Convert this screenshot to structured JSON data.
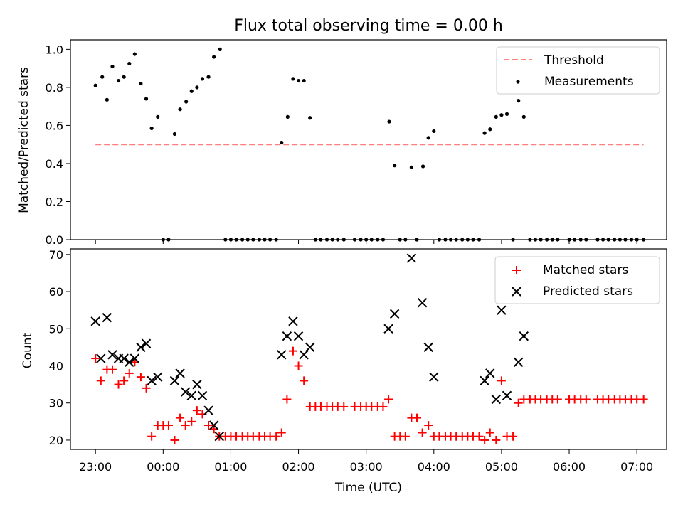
{
  "chart_data": [
    {
      "type": "scatter",
      "title": "Flux total observing time = 0.00 h",
      "xlabel": "",
      "ylabel": "Matched/Predicted stars",
      "ylim": [
        0,
        1.05
      ],
      "yticks": [
        "0.0",
        "0.2",
        "0.4",
        "0.6",
        "0.8",
        "1.0"
      ],
      "legend_position": "top-right",
      "grid": false,
      "threshold": {
        "name": "Threshold",
        "value": 0.5,
        "x_start": 0.0,
        "x_end": 8.1,
        "color": "#ff7f7f",
        "style": "dashed"
      },
      "series": [
        {
          "name": "Measurements",
          "marker": "dot",
          "color": "#000000",
          "points": [
            [
              0.0,
              0.81
            ],
            [
              0.1,
              0.855
            ],
            [
              0.17,
              0.735
            ],
            [
              0.25,
              0.91
            ],
            [
              0.34,
              0.835
            ],
            [
              0.42,
              0.855
            ],
            [
              0.5,
              0.925
            ],
            [
              0.58,
              0.975
            ],
            [
              0.67,
              0.82
            ],
            [
              0.75,
              0.74
            ],
            [
              0.83,
              0.585
            ],
            [
              0.92,
              0.645
            ],
            [
              1.0,
              0.0
            ],
            [
              1.08,
              0.0
            ],
            [
              1.17,
              0.555
            ],
            [
              1.25,
              0.685
            ],
            [
              1.34,
              0.725
            ],
            [
              1.42,
              0.78
            ],
            [
              1.5,
              0.8
            ],
            [
              1.58,
              0.845
            ],
            [
              1.67,
              0.855
            ],
            [
              1.75,
              0.96
            ],
            [
              1.84,
              1.0
            ],
            [
              1.92,
              0.0
            ],
            [
              2.0,
              0.0
            ],
            [
              2.08,
              0.0
            ],
            [
              2.17,
              0.0
            ],
            [
              2.25,
              0.0
            ],
            [
              2.33,
              0.0
            ],
            [
              2.42,
              0.0
            ],
            [
              2.5,
              0.0
            ],
            [
              2.58,
              0.0
            ],
            [
              2.67,
              0.0
            ],
            [
              2.75,
              0.51
            ],
            [
              2.84,
              0.645
            ],
            [
              2.92,
              0.845
            ],
            [
              3.0,
              0.835
            ],
            [
              3.08,
              0.835
            ],
            [
              3.17,
              0.64
            ],
            [
              3.25,
              0.0
            ],
            [
              3.33,
              0.0
            ],
            [
              3.42,
              0.0
            ],
            [
              3.5,
              0.0
            ],
            [
              3.58,
              0.0
            ],
            [
              3.67,
              0.0
            ],
            [
              3.83,
              0.0
            ],
            [
              3.92,
              0.0
            ],
            [
              4.0,
              0.0
            ],
            [
              4.08,
              0.0
            ],
            [
              4.17,
              0.0
            ],
            [
              4.25,
              0.0
            ],
            [
              4.34,
              0.62
            ],
            [
              4.42,
              0.39
            ],
            [
              4.5,
              0.0
            ],
            [
              4.58,
              0.0
            ],
            [
              4.67,
              0.38
            ],
            [
              4.75,
              0.0
            ],
            [
              4.84,
              0.385
            ],
            [
              4.92,
              0.535
            ],
            [
              5.0,
              0.57
            ],
            [
              5.08,
              0.0
            ],
            [
              5.17,
              0.0
            ],
            [
              5.25,
              0.0
            ],
            [
              5.33,
              0.0
            ],
            [
              5.42,
              0.0
            ],
            [
              5.5,
              0.0
            ],
            [
              5.58,
              0.0
            ],
            [
              5.67,
              0.0
            ],
            [
              5.75,
              0.56
            ],
            [
              5.83,
              0.58
            ],
            [
              5.92,
              0.645
            ],
            [
              6.0,
              0.655
            ],
            [
              6.08,
              0.66
            ],
            [
              6.17,
              0.0
            ],
            [
              6.25,
              0.73
            ],
            [
              6.33,
              0.645
            ],
            [
              6.42,
              0.0
            ],
            [
              6.5,
              0.0
            ],
            [
              6.58,
              0.0
            ],
            [
              6.67,
              0.0
            ],
            [
              6.75,
              0.0
            ],
            [
              6.83,
              0.0
            ],
            [
              7.0,
              0.0
            ],
            [
              7.08,
              0.0
            ],
            [
              7.17,
              0.0
            ],
            [
              7.25,
              0.0
            ],
            [
              7.42,
              0.0
            ],
            [
              7.5,
              0.0
            ],
            [
              7.58,
              0.0
            ],
            [
              7.67,
              0.0
            ],
            [
              7.75,
              0.0
            ],
            [
              7.83,
              0.0
            ],
            [
              7.92,
              0.0
            ],
            [
              8.0,
              0.0
            ],
            [
              8.1,
              0.0
            ]
          ]
        }
      ]
    },
    {
      "type": "scatter",
      "title": "",
      "xlabel": "Time (UTC)",
      "ylabel": "Count",
      "ylim": [
        17.5,
        71.5
      ],
      "yticks": [
        "20",
        "30",
        "40",
        "50",
        "60",
        "70"
      ],
      "xlim": [
        -0.37,
        8.44
      ],
      "xticks": [
        "23:00",
        "00:00",
        "01:00",
        "02:00",
        "03:00",
        "04:00",
        "05:00",
        "06:00",
        "07:00"
      ],
      "legend_position": "top-right",
      "grid": false,
      "series": [
        {
          "name": "Matched stars",
          "marker": "plus",
          "color": "#ff0000",
          "points": [
            [
              0.0,
              42
            ],
            [
              0.08,
              36
            ],
            [
              0.17,
              39
            ],
            [
              0.25,
              39
            ],
            [
              0.34,
              35
            ],
            [
              0.42,
              36
            ],
            [
              0.5,
              38
            ],
            [
              0.58,
              41
            ],
            [
              0.67,
              37
            ],
            [
              0.75,
              34
            ],
            [
              0.83,
              21
            ],
            [
              0.92,
              24
            ],
            [
              1.0,
              24
            ],
            [
              1.08,
              24
            ],
            [
              1.17,
              20
            ],
            [
              1.25,
              26
            ],
            [
              1.33,
              24
            ],
            [
              1.42,
              25
            ],
            [
              1.5,
              28
            ],
            [
              1.58,
              27
            ],
            [
              1.67,
              24
            ],
            [
              1.75,
              23
            ],
            [
              1.83,
              21
            ],
            [
              1.92,
              21
            ],
            [
              2.0,
              21
            ],
            [
              2.08,
              21
            ],
            [
              2.17,
              21
            ],
            [
              2.25,
              21
            ],
            [
              2.33,
              21
            ],
            [
              2.42,
              21
            ],
            [
              2.5,
              21
            ],
            [
              2.58,
              21
            ],
            [
              2.67,
              21
            ],
            [
              2.75,
              22
            ],
            [
              2.83,
              31
            ],
            [
              2.92,
              44
            ],
            [
              3.0,
              40
            ],
            [
              3.08,
              36
            ],
            [
              3.17,
              29
            ],
            [
              3.25,
              29
            ],
            [
              3.33,
              29
            ],
            [
              3.42,
              29
            ],
            [
              3.5,
              29
            ],
            [
              3.58,
              29
            ],
            [
              3.67,
              29
            ],
            [
              3.83,
              29
            ],
            [
              3.92,
              29
            ],
            [
              4.0,
              29
            ],
            [
              4.08,
              29
            ],
            [
              4.17,
              29
            ],
            [
              4.25,
              29
            ],
            [
              4.33,
              31
            ],
            [
              4.42,
              21
            ],
            [
              4.5,
              21
            ],
            [
              4.58,
              21
            ],
            [
              4.67,
              26
            ],
            [
              4.75,
              26
            ],
            [
              4.83,
              22
            ],
            [
              4.92,
              24
            ],
            [
              5.0,
              21
            ],
            [
              5.08,
              21
            ],
            [
              5.17,
              21
            ],
            [
              5.25,
              21
            ],
            [
              5.33,
              21
            ],
            [
              5.42,
              21
            ],
            [
              5.5,
              21
            ],
            [
              5.58,
              21
            ],
            [
              5.67,
              21
            ],
            [
              5.75,
              20
            ],
            [
              5.83,
              22
            ],
            [
              5.92,
              20
            ],
            [
              6.0,
              36
            ],
            [
              6.08,
              21
            ],
            [
              6.17,
              21
            ],
            [
              6.25,
              30
            ],
            [
              6.33,
              31
            ],
            [
              6.42,
              31
            ],
            [
              6.5,
              31
            ],
            [
              6.58,
              31
            ],
            [
              6.67,
              31
            ],
            [
              6.75,
              31
            ],
            [
              6.83,
              31
            ],
            [
              7.0,
              31
            ],
            [
              7.08,
              31
            ],
            [
              7.17,
              31
            ],
            [
              7.25,
              31
            ],
            [
              7.42,
              31
            ],
            [
              7.5,
              31
            ],
            [
              7.58,
              31
            ],
            [
              7.67,
              31
            ],
            [
              7.75,
              31
            ],
            [
              7.83,
              31
            ],
            [
              7.92,
              31
            ],
            [
              8.0,
              31
            ],
            [
              8.1,
              31
            ]
          ]
        },
        {
          "name": "Predicted stars",
          "marker": "x",
          "color": "#000000",
          "points": [
            [
              0.0,
              52
            ],
            [
              0.08,
              42
            ],
            [
              0.17,
              53
            ],
            [
              0.25,
              43
            ],
            [
              0.34,
              42
            ],
            [
              0.42,
              42
            ],
            [
              0.5,
              41
            ],
            [
              0.58,
              42
            ],
            [
              0.67,
              45
            ],
            [
              0.75,
              46
            ],
            [
              0.83,
              36
            ],
            [
              0.92,
              37
            ],
            [
              1.17,
              36
            ],
            [
              1.25,
              38
            ],
            [
              1.33,
              33
            ],
            [
              1.42,
              32
            ],
            [
              1.5,
              35
            ],
            [
              1.58,
              32
            ],
            [
              1.67,
              28
            ],
            [
              1.75,
              24
            ],
            [
              1.83,
              21
            ],
            [
              2.75,
              43
            ],
            [
              2.83,
              48
            ],
            [
              2.92,
              52
            ],
            [
              3.0,
              48
            ],
            [
              3.08,
              43
            ],
            [
              3.17,
              45
            ],
            [
              4.33,
              50
            ],
            [
              4.42,
              54
            ],
            [
              4.67,
              69
            ],
            [
              4.83,
              57
            ],
            [
              4.92,
              45
            ],
            [
              5.0,
              37
            ],
            [
              5.75,
              36
            ],
            [
              5.83,
              38
            ],
            [
              5.92,
              31
            ],
            [
              6.0,
              55
            ],
            [
              6.08,
              32
            ],
            [
              6.25,
              41
            ],
            [
              6.33,
              48
            ]
          ]
        }
      ]
    }
  ]
}
